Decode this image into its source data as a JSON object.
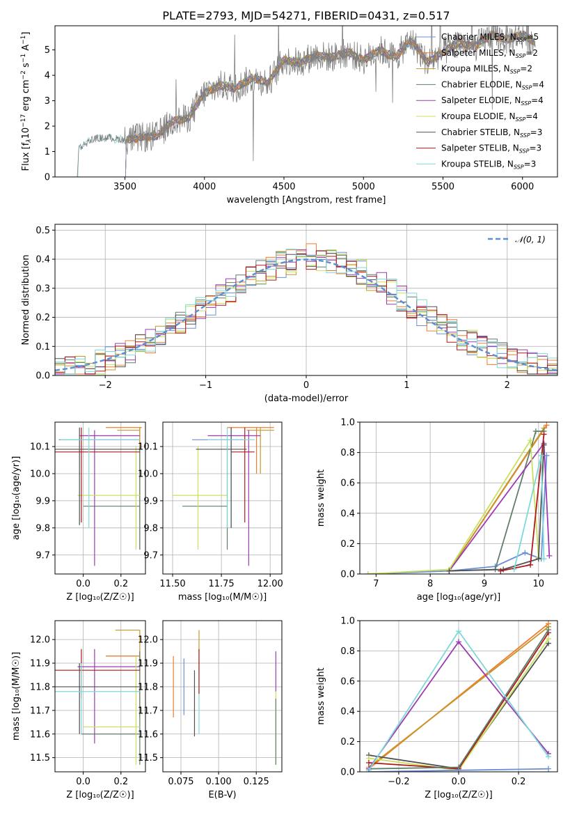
{
  "figure": {
    "title": "PLATE=2793, MJD=54271, FIBERID=0431, z=0.517"
  },
  "colors": {
    "chabrier_miles": "#6a8fd6",
    "salpeter_miles": "#f07b2c",
    "kroupa_miles": "#c6962a",
    "chabrier_elodie": "#5f7f6a",
    "salpeter_elodie": "#9a3bb2",
    "kroupa_elodie": "#c8e05a",
    "chabrier_stelib": "#505050",
    "salpeter_stelib": "#b01818",
    "kroupa_stelib": "#7fd8d8",
    "data": "#808080",
    "normal": "#5f8fd3"
  },
  "chart_data": [
    {
      "id": "spectrum",
      "type": "line",
      "title": "PLATE=2793, MJD=54271, FIBERID=0431, z=0.517",
      "xlabel": "wavelength [Angstrom, rest frame]",
      "ylabel_parts": [
        "Flux [f",
        "λ",
        "10",
        "−17",
        " erg cm",
        "−2",
        " s",
        "−1",
        " A",
        "−1",
        "]"
      ],
      "xlim": [
        3060,
        6220
      ],
      "ylim": [
        0,
        5.95
      ],
      "xticks": [
        3500,
        4000,
        4500,
        5000,
        5500,
        6000
      ],
      "yticks": [
        0,
        1,
        2,
        3,
        4,
        5
      ],
      "data_range": [
        3200,
        6080
      ],
      "model_range": [
        3500,
        6080
      ],
      "continuum_points": [
        [
          3200,
          0
        ],
        [
          3210,
          1.15
        ],
        [
          3300,
          1.5
        ],
        [
          3400,
          1.55
        ],
        [
          3500,
          1.45
        ],
        [
          3600,
          1.55
        ],
        [
          3700,
          1.6
        ],
        [
          3800,
          2.2
        ],
        [
          3900,
          2.3
        ],
        [
          4000,
          3.3
        ],
        [
          4100,
          3.6
        ],
        [
          4200,
          3.5
        ],
        [
          4300,
          3.9
        ],
        [
          4400,
          3.7
        ],
        [
          4500,
          4.6
        ],
        [
          4600,
          4.5
        ],
        [
          4700,
          4.8
        ],
        [
          4800,
          4.7
        ],
        [
          4900,
          4.9
        ],
        [
          5000,
          4.6
        ],
        [
          5100,
          5.0
        ],
        [
          5200,
          4.7
        ],
        [
          5300,
          5.4
        ],
        [
          5400,
          4.5
        ],
        [
          5500,
          4.9
        ],
        [
          5600,
          5.3
        ],
        [
          5700,
          5.1
        ],
        [
          5800,
          5.6
        ],
        [
          5900,
          5.4
        ],
        [
          6000,
          5.6
        ],
        [
          6080,
          5.3
        ]
      ],
      "legend": [
        {
          "key": "chabrier_miles",
          "label": "Chabrier MILES, N",
          "sub": "SSP",
          "value": "=5"
        },
        {
          "key": "salpeter_miles",
          "label": "Salpeter MILES, N",
          "sub": "SSP",
          "value": "=2"
        },
        {
          "key": "kroupa_miles",
          "label": "Kroupa MILES, N",
          "sub": "SSP",
          "value": "=2"
        },
        {
          "key": "chabrier_elodie",
          "label": "Chabrier ELODIE, N",
          "sub": "SSP",
          "value": "=4"
        },
        {
          "key": "salpeter_elodie",
          "label": "Salpeter ELODIE, N",
          "sub": "SSP",
          "value": "=4"
        },
        {
          "key": "kroupa_elodie",
          "label": "Kroupa ELODIE, N",
          "sub": "SSP",
          "value": "=4"
        },
        {
          "key": "chabrier_stelib",
          "label": "Chabrier STELIB, N",
          "sub": "SSP",
          "value": "=3"
        },
        {
          "key": "salpeter_stelib",
          "label": "Salpeter STELIB, N",
          "sub": "SSP",
          "value": "=3"
        },
        {
          "key": "kroupa_stelib",
          "label": "Kroupa STELIB, N",
          "sub": "SSP",
          "value": "=3"
        }
      ]
    },
    {
      "id": "residuals",
      "type": "histogram",
      "xlabel": "(data-model)/error",
      "ylabel": "Normed distribution",
      "xlim": [
        -2.5,
        2.5
      ],
      "ylim": [
        0,
        0.52
      ],
      "xticks": [
        -2,
        -1,
        0,
        1,
        2
      ],
      "xtick_labels": [
        "−2",
        "−1",
        "0",
        "1",
        "2"
      ],
      "yticks": [
        0,
        0.1,
        0.2,
        0.3,
        0.4,
        0.5
      ],
      "ytick_labels": [
        "0.0",
        "0.1",
        "0.2",
        "0.3",
        "0.4",
        "0.5"
      ],
      "bin_width": 0.1,
      "legend_label": "𝒩(0, 1)"
    },
    {
      "id": "age_vs_Z",
      "type": "errorbar",
      "xlabel": "Z [log₁₀(Z/Z☉)]",
      "ylabel": "age  [log₁₀(age/yr)]",
      "xlim": [
        -0.15,
        0.33
      ],
      "ylim": [
        9.63,
        10.19
      ],
      "xticks": [
        0.0,
        0.2
      ],
      "xtick_labels": [
        "0.0",
        "0.2"
      ],
      "yticks": [
        9.7,
        9.8,
        9.9,
        10.0,
        10.1
      ],
      "ytick_labels": [
        "9.7",
        "9.8",
        "9.9",
        "10.0",
        "10.1"
      ],
      "bars": [
        {
          "c": "chabrier_miles",
          "x": 0.3,
          "y": 10.125,
          "xl": -0.13,
          "xh": 0.3,
          "yl": 9.72,
          "yh": 10.13
        },
        {
          "c": "salpeter_miles",
          "x": 0.3,
          "y": 10.17,
          "xl": 0.12,
          "xh": 0.31,
          "yl": 9.83,
          "yh": 10.17
        },
        {
          "c": "kroupa_miles",
          "x": 0.3,
          "y": 10.16,
          "xl": 0.18,
          "xh": 0.3,
          "yl": 10.0,
          "yh": 10.17
        },
        {
          "c": "chabrier_elodie",
          "x": 0.3,
          "y": 9.88,
          "xl": 0.0,
          "xh": 0.3,
          "yl": 9.72,
          "yh": 10.1
        },
        {
          "c": "salpeter_elodie",
          "x": 0.06,
          "y": 10.14,
          "xl": -0.02,
          "xh": 0.3,
          "yl": 9.66,
          "yh": 10.16
        },
        {
          "c": "kroupa_elodie",
          "x": 0.28,
          "y": 9.92,
          "xl": -0.03,
          "xh": 0.3,
          "yl": 9.72,
          "yh": 10.1
        },
        {
          "c": "chabrier_stelib",
          "x": -0.02,
          "y": 10.09,
          "xl": -0.15,
          "xh": 0.3,
          "yl": 9.81,
          "yh": 10.17
        },
        {
          "c": "salpeter_stelib",
          "x": -0.01,
          "y": 10.08,
          "xl": -0.15,
          "xh": 0.3,
          "yl": 9.82,
          "yh": 10.17
        },
        {
          "c": "kroupa_stelib",
          "x": 0.03,
          "y": 10.125,
          "xl": -0.12,
          "xh": 0.3,
          "yl": 9.8,
          "yh": 10.17
        }
      ]
    },
    {
      "id": "age_vs_mass",
      "type": "errorbar",
      "xlabel": "mass [log₁₀(M/M☉)]",
      "ylabel": "",
      "xlim": [
        11.45,
        12.06
      ],
      "ylim": [
        9.63,
        10.19
      ],
      "xticks": [
        11.5,
        11.75,
        12.0
      ],
      "xtick_labels": [
        "11.50",
        "11.75",
        "12.00"
      ],
      "yticks": [
        9.7,
        9.8,
        9.9,
        10.0,
        10.1
      ],
      "ytick_labels": [
        "9.7",
        "9.8",
        "9.9",
        "10.0",
        "10.1"
      ],
      "bars": [
        {
          "c": "chabrier_miles",
          "x": 11.8,
          "y": 10.125,
          "xl": 11.6,
          "xh": 11.87,
          "yl": 9.8,
          "yh": 10.17
        },
        {
          "c": "salpeter_miles",
          "x": 11.93,
          "y": 10.17,
          "xl": 11.78,
          "xh": 12.02,
          "yl": 10.0,
          "yh": 10.17
        },
        {
          "c": "kroupa_miles",
          "x": 11.95,
          "y": 10.16,
          "xl": 11.88,
          "xh": 12.02,
          "yl": 10.0,
          "yh": 10.17
        },
        {
          "c": "chabrier_elodie",
          "x": 11.78,
          "y": 9.88,
          "xl": 11.55,
          "xh": 11.78,
          "yl": 9.72,
          "yh": 10.1
        },
        {
          "c": "salpeter_elodie",
          "x": 11.89,
          "y": 10.14,
          "xl": 11.68,
          "xh": 11.95,
          "yl": 9.66,
          "yh": 10.16
        },
        {
          "c": "kroupa_elodie",
          "x": 11.63,
          "y": 9.92,
          "xl": 11.5,
          "xh": 11.78,
          "yl": 9.72,
          "yh": 10.1
        },
        {
          "c": "chabrier_stelib",
          "x": 11.8,
          "y": 10.09,
          "xl": 11.62,
          "xh": 11.88,
          "yl": 9.8,
          "yh": 10.17
        },
        {
          "c": "salpeter_stelib",
          "x": 11.87,
          "y": 10.08,
          "xl": 11.8,
          "xh": 11.92,
          "yl": 9.82,
          "yh": 10.17
        },
        {
          "c": "kroupa_stelib",
          "x": 11.78,
          "y": 10.125,
          "xl": 11.68,
          "xh": 11.92,
          "yl": 9.8,
          "yh": 10.17
        }
      ]
    },
    {
      "id": "massweight_vs_age",
      "type": "line",
      "xlabel": "age  [log₁₀(age/yr)]",
      "ylabel": "mass weight",
      "xlim": [
        6.7,
        10.35
      ],
      "ylim": [
        0,
        1
      ],
      "xticks": [
        7,
        8,
        9,
        10
      ],
      "xtick_labels": [
        "7",
        "8",
        "9",
        "10"
      ],
      "yticks": [
        0,
        0.2,
        0.4,
        0.6,
        0.8,
        1.0
      ],
      "ytick_labels": [
        "0.0",
        "0.2",
        "0.4",
        "0.6",
        "0.8",
        "1.0"
      ],
      "series": [
        {
          "c": "chabrier_miles",
          "x": [
            6.85,
            8.35,
            9.2,
            9.75,
            10.05,
            10.15
          ],
          "y": [
            0.0,
            0.02,
            0.05,
            0.14,
            0.1,
            0.78
          ]
        },
        {
          "c": "salpeter_miles",
          "x": [
            8.35,
            10.15
          ],
          "y": [
            0.02,
            0.98
          ]
        },
        {
          "c": "kroupa_miles",
          "x": [
            8.35,
            10.1
          ],
          "y": [
            0.02,
            0.96
          ]
        },
        {
          "c": "chabrier_elodie",
          "x": [
            8.35,
            9.2,
            9.95,
            10.1
          ],
          "y": [
            0.02,
            0.03,
            0.94,
            0.94
          ]
        },
        {
          "c": "salpeter_elodie",
          "x": [
            8.35,
            10.1,
            10.2
          ],
          "y": [
            0.02,
            0.86,
            0.12
          ]
        },
        {
          "c": "kroupa_elodie",
          "x": [
            6.85,
            8.35,
            9.85,
            10.0
          ],
          "y": [
            0.0,
            0.03,
            0.88,
            0.11
          ]
        },
        {
          "c": "chabrier_stelib",
          "x": [
            8.35,
            9.35,
            10.0,
            10.1
          ],
          "y": [
            0.02,
            0.03,
            0.1,
            0.85
          ]
        },
        {
          "c": "salpeter_stelib",
          "x": [
            9.3,
            9.85,
            10.1
          ],
          "y": [
            0.02,
            0.06,
            0.92
          ]
        },
        {
          "c": "kroupa_stelib",
          "x": [
            9.55,
            10.05,
            10.1
          ],
          "y": [
            0.03,
            0.78,
            0.1
          ]
        }
      ]
    },
    {
      "id": "mass_vs_Z",
      "type": "errorbar",
      "xlabel": "Z [log₁₀(Z/Z☉)]",
      "ylabel": "mass [log₁₀(M/M☉)]",
      "xlim": [
        -0.15,
        0.33
      ],
      "ylim": [
        11.44,
        12.08
      ],
      "xticks": [
        0.0,
        0.2
      ],
      "xtick_labels": [
        "0.0",
        "0.2"
      ],
      "yticks": [
        11.5,
        11.6,
        11.7,
        11.8,
        11.9,
        12.0
      ],
      "ytick_labels": [
        "11.5",
        "11.6",
        "11.7",
        "11.8",
        "11.9",
        "12.0"
      ],
      "bars": [
        {
          "c": "chabrier_miles",
          "x": 0.3,
          "y": 11.93,
          "xl": 0.12,
          "xh": 0.3,
          "yl": 11.67,
          "yh": 11.95
        },
        {
          "c": "salpeter_miles",
          "x": 0.3,
          "y": 11.93,
          "xl": 0.12,
          "xh": 0.3,
          "yl": 11.67,
          "yh": 11.95
        },
        {
          "c": "kroupa_miles",
          "x": 0.3,
          "y": 12.04,
          "xl": 0.17,
          "xh": 0.3,
          "yl": 11.9,
          "yh": 12.04
        },
        {
          "c": "chabrier_elodie",
          "x": 0.3,
          "y": 11.6,
          "xl": -0.01,
          "xh": 0.3,
          "yl": 11.47,
          "yh": 11.95
        },
        {
          "c": "salpeter_elodie",
          "x": 0.06,
          "y": 11.885,
          "xl": -0.03,
          "xh": 0.3,
          "yl": 11.56,
          "yh": 11.96
        },
        {
          "c": "kroupa_elodie",
          "x": 0.28,
          "y": 11.63,
          "xl": 0.0,
          "xh": 0.3,
          "yl": 11.47,
          "yh": 11.93
        },
        {
          "c": "chabrier_stelib",
          "x": -0.02,
          "y": 11.8,
          "xl": -0.15,
          "xh": 0.3,
          "yl": 11.6,
          "yh": 11.9
        },
        {
          "c": "salpeter_stelib",
          "x": -0.01,
          "y": 11.87,
          "xl": -0.15,
          "xh": 0.3,
          "yl": 11.75,
          "yh": 11.96
        },
        {
          "c": "kroupa_stelib",
          "x": -0.01,
          "y": 11.78,
          "xl": -0.15,
          "xh": 0.3,
          "yl": 11.6,
          "yh": 11.9
        }
      ]
    },
    {
      "id": "mass_vs_ebv",
      "type": "errorbar",
      "xlabel": "E(B-V)",
      "ylabel": "",
      "xlim": [
        0.063,
        0.142
      ],
      "ylim": [
        11.44,
        12.08
      ],
      "xticks": [
        0.075,
        0.1,
        0.125
      ],
      "xtick_labels": [
        "0.075",
        "0.100",
        "0.125"
      ],
      "yticks": [
        11.5,
        11.6,
        11.7,
        11.8,
        11.9,
        12.0
      ],
      "ytick_labels": [
        "11.5",
        "11.6",
        "11.7",
        "11.8",
        "11.9",
        "12.0"
      ],
      "bars": [
        {
          "c": "salpeter_miles",
          "x": 0.07,
          "y": 11.8,
          "yl": 11.67,
          "yh": 11.93
        },
        {
          "c": "chabrier_miles",
          "x": 0.077,
          "y": 11.8,
          "yl": 11.68,
          "yh": 11.92
        },
        {
          "c": "chabrier_stelib",
          "x": 0.084,
          "y": 11.75,
          "yl": 11.59,
          "yh": 11.87
        },
        {
          "c": "kroupa_stelib",
          "x": 0.087,
          "y": 11.75,
          "yl": 11.6,
          "yh": 11.85
        },
        {
          "c": "kroupa_miles",
          "x": 0.087,
          "y": 11.92,
          "yl": 11.85,
          "yh": 12.04
        },
        {
          "c": "salpeter_stelib",
          "x": 0.087,
          "y": 11.87,
          "yl": 11.77,
          "yh": 11.96
        },
        {
          "c": "salpeter_elodie",
          "x": 0.138,
          "y": 11.87,
          "yl": 11.78,
          "yh": 11.95
        },
        {
          "c": "kroupa_elodie",
          "x": 0.138,
          "y": 11.63,
          "yl": 11.47,
          "yh": 11.78
        },
        {
          "c": "chabrier_elodie",
          "x": 0.138,
          "y": 11.6,
          "yl": 11.47,
          "yh": 11.75
        }
      ]
    },
    {
      "id": "massweight_vs_Z",
      "type": "line",
      "xlabel": "Z [log₁₀(Z/Z☉)]",
      "ylabel": "mass weight",
      "xlim": [
        -0.33,
        0.33
      ],
      "ylim": [
        0,
        1
      ],
      "xticks": [
        -0.2,
        0.0,
        0.2
      ],
      "xtick_labels": [
        "−0.2",
        "0.0",
        "0.2"
      ],
      "yticks": [
        0,
        0.2,
        0.4,
        0.6,
        0.8,
        1.0
      ],
      "ytick_labels": [
        "0.0",
        "0.2",
        "0.4",
        "0.6",
        "0.8",
        "1.0"
      ],
      "series": [
        {
          "c": "salpeter_miles",
          "x": [
            -0.3,
            0.3
          ],
          "y": [
            0.02,
            0.98
          ]
        },
        {
          "c": "kroupa_miles",
          "x": [
            -0.3,
            0.3
          ],
          "y": [
            0.03,
            0.96
          ]
        },
        {
          "c": "chabrier_stelib",
          "x": [
            -0.3,
            0.0,
            0.3
          ],
          "y": [
            0.11,
            0.02,
            0.85
          ]
        },
        {
          "c": "kroupa_elodie",
          "x": [
            -0.3,
            0.0,
            0.3
          ],
          "y": [
            0.09,
            0.01,
            0.88
          ]
        },
        {
          "c": "salpeter_stelib",
          "x": [
            -0.3,
            0.0,
            0.3
          ],
          "y": [
            0.06,
            0.02,
            0.92
          ]
        },
        {
          "c": "chabrier_elodie",
          "x": [
            -0.3,
            0.0,
            0.3
          ],
          "y": [
            0.02,
            0.03,
            0.94
          ]
        },
        {
          "c": "salpeter_elodie",
          "x": [
            -0.3,
            0.0,
            0.3
          ],
          "y": [
            0.02,
            0.86,
            0.12
          ]
        },
        {
          "c": "kroupa_stelib",
          "x": [
            -0.3,
            0.0,
            0.3
          ],
          "y": [
            0.01,
            0.93,
            0.1
          ]
        },
        {
          "c": "chabrier_miles",
          "x": [
            -0.3,
            0.0,
            0.3
          ],
          "y": [
            0.0,
            0.01,
            0.02
          ]
        }
      ]
    }
  ]
}
